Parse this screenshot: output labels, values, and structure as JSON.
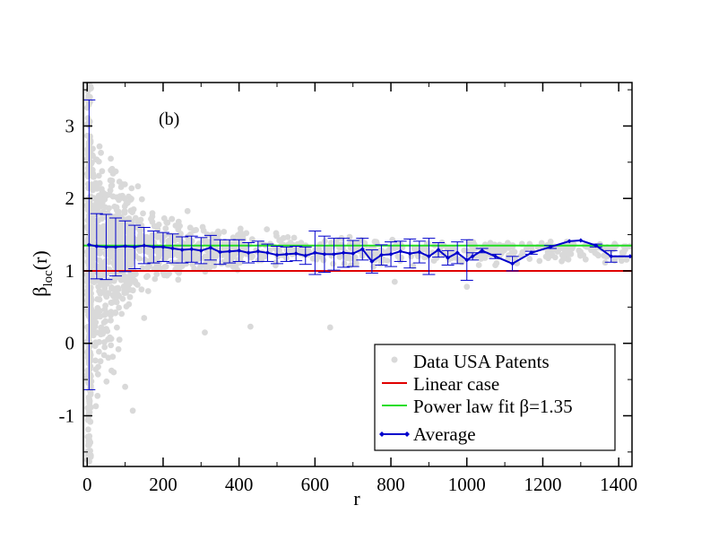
{
  "chart_data": {
    "type": "scatter",
    "panel_label": "(b)",
    "xlabel": "r",
    "ylabel": {
      "main": "β",
      "subscript": "loc",
      "suffix": "(r)"
    },
    "xlim": [
      -10,
      1435
    ],
    "ylim": [
      -1.7,
      3.6
    ],
    "xticks": [
      0,
      200,
      400,
      600,
      800,
      1000,
      1200,
      1400
    ],
    "yticks": [
      -1,
      0,
      1,
      2,
      3
    ],
    "xtick_labels": [
      "0",
      "200",
      "400",
      "600",
      "800",
      "1000",
      "1200",
      "1400"
    ],
    "ytick_labels": [
      "-1",
      "0",
      "1",
      "2",
      "3"
    ],
    "colors": {
      "scatter": "#d9d9d9",
      "linear": "#e00000",
      "fit": "#22dd22",
      "average": "#0000cc"
    },
    "legend": {
      "placement": "bottom-right",
      "entries": [
        {
          "label": "Data USA Patents",
          "style": "dot",
          "color": "#d9d9d9"
        },
        {
          "label": "Linear case",
          "style": "line",
          "color": "#e00000"
        },
        {
          "label": "Power law fit β=1.35",
          "style": "line",
          "color": "#22dd22"
        },
        {
          "label": "Average",
          "style": "line-marker",
          "color": "#0000cc"
        }
      ]
    },
    "reference_lines": [
      {
        "name": "Linear case",
        "y": 1.0
      },
      {
        "name": "Power law fit β=1.35",
        "y": 1.35
      }
    ],
    "average_series": {
      "name": "Average",
      "x": [
        5,
        25,
        50,
        75,
        100,
        125,
        150,
        175,
        200,
        225,
        250,
        275,
        300,
        325,
        350,
        375,
        400,
        425,
        450,
        475,
        500,
        525,
        550,
        575,
        600,
        625,
        650,
        675,
        700,
        725,
        750,
        775,
        800,
        825,
        850,
        875,
        900,
        925,
        950,
        975,
        1000,
        1015,
        1040,
        1075,
        1120,
        1170,
        1220,
        1270,
        1300,
        1340,
        1380,
        1430
      ],
      "y": [
        1.36,
        1.34,
        1.33,
        1.33,
        1.34,
        1.33,
        1.35,
        1.33,
        1.33,
        1.31,
        1.29,
        1.3,
        1.28,
        1.32,
        1.26,
        1.27,
        1.28,
        1.25,
        1.27,
        1.25,
        1.22,
        1.23,
        1.24,
        1.21,
        1.25,
        1.23,
        1.23,
        1.25,
        1.24,
        1.3,
        1.13,
        1.22,
        1.23,
        1.27,
        1.24,
        1.26,
        1.2,
        1.29,
        1.18,
        1.25,
        1.15,
        1.2,
        1.28,
        1.2,
        1.1,
        1.25,
        1.33,
        1.41,
        1.42,
        1.35,
        1.2,
        1.2
      ],
      "yerr": [
        2.0,
        0.45,
        0.45,
        0.4,
        0.35,
        0.3,
        0.25,
        0.22,
        0.2,
        0.2,
        0.18,
        0.18,
        0.18,
        0.17,
        0.17,
        0.16,
        0.15,
        0.14,
        0.14,
        0.12,
        0.12,
        0.1,
        0.1,
        0.12,
        0.3,
        0.25,
        0.22,
        0.2,
        0.18,
        0.15,
        0.16,
        0.14,
        0.17,
        0.14,
        0.2,
        0.15,
        0.25,
        0.1,
        0.1,
        0.15,
        0.28,
        0.05,
        0.03,
        0.03,
        0.1,
        0.02,
        0.02,
        0.01,
        0.01,
        0.02,
        0.08,
        0.01
      ]
    },
    "scatter_series": {
      "name": "Data USA Patents",
      "note": "dense cloud of local exponents; mean about 1.3 with spread shrinking as r grows",
      "spread_profile": [
        {
          "r": 0,
          "low": -1.7,
          "high": 3.6
        },
        {
          "r": 20,
          "low": -1.6,
          "high": 3.2
        },
        {
          "r": 60,
          "low": -0.8,
          "high": 2.8
        },
        {
          "r": 100,
          "low": 0.2,
          "high": 2.4
        },
        {
          "r": 200,
          "low": 0.7,
          "high": 2.0
        },
        {
          "r": 350,
          "low": 0.95,
          "high": 1.7
        },
        {
          "r": 600,
          "low": 1.0,
          "high": 1.55
        },
        {
          "r": 1000,
          "low": 1.0,
          "high": 1.45
        },
        {
          "r": 1430,
          "low": 1.05,
          "high": 1.45
        }
      ],
      "outliers": [
        {
          "x": 70,
          "y": -0.4
        },
        {
          "x": 85,
          "y": 0.05
        },
        {
          "x": 100,
          "y": -0.6
        },
        {
          "x": 120,
          "y": -0.93
        },
        {
          "x": 150,
          "y": 0.35
        },
        {
          "x": 310,
          "y": 0.15
        },
        {
          "x": 430,
          "y": 0.23
        },
        {
          "x": 640,
          "y": 0.22
        },
        {
          "x": 810,
          "y": 0.85
        },
        {
          "x": 1000,
          "y": 0.78
        }
      ]
    }
  }
}
